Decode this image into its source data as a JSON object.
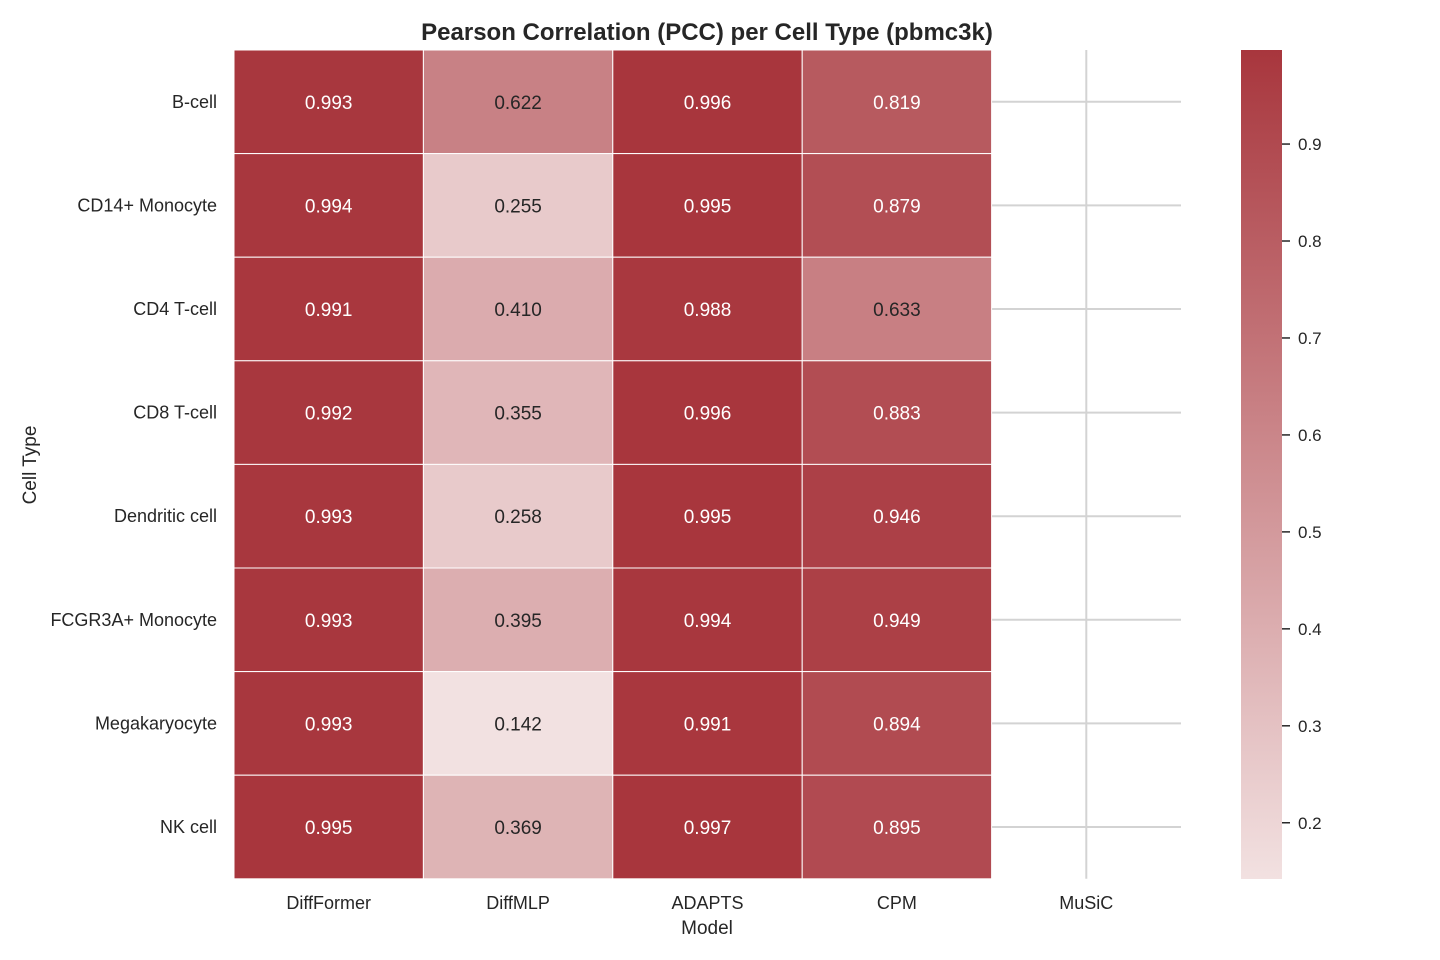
{
  "chart_data": {
    "type": "heatmap",
    "title": "Pearson Correlation (PCC) per Cell Type (pbmc3k)",
    "xlabel": "Model",
    "ylabel": "Cell Type",
    "x_categories": [
      "DiffFormer",
      "DiffMLP",
      "ADAPTS",
      "CPM",
      "MuSiC"
    ],
    "y_categories": [
      "B-cell",
      "CD14+ Monocyte",
      "CD4 T-cell",
      "CD8 T-cell",
      "Dendritic cell",
      "FCGR3A+ Monocyte",
      "Megakaryocyte",
      "NK cell"
    ],
    "values": [
      [
        0.993,
        0.622,
        0.996,
        0.819,
        null
      ],
      [
        0.994,
        0.255,
        0.995,
        0.879,
        null
      ],
      [
        0.991,
        0.41,
        0.988,
        0.633,
        null
      ],
      [
        0.992,
        0.355,
        0.996,
        0.883,
        null
      ],
      [
        0.993,
        0.258,
        0.995,
        0.946,
        null
      ],
      [
        0.993,
        0.395,
        0.994,
        0.949,
        null
      ],
      [
        0.993,
        0.142,
        0.991,
        0.894,
        null
      ],
      [
        0.995,
        0.369,
        0.997,
        0.895,
        null
      ]
    ],
    "colorbar": {
      "vmin": 0.142,
      "vmax": 0.997,
      "ticks": [
        0.2,
        0.3,
        0.4,
        0.5,
        0.6,
        0.7,
        0.8,
        0.9
      ],
      "tick_labels": [
        "0.2",
        "0.3",
        "0.4",
        "0.5",
        "0.6",
        "0.7",
        "0.8",
        "0.9"
      ]
    },
    "colormap": {
      "low": "#f2e1e1",
      "high": "#a8363d"
    },
    "grid": true
  }
}
